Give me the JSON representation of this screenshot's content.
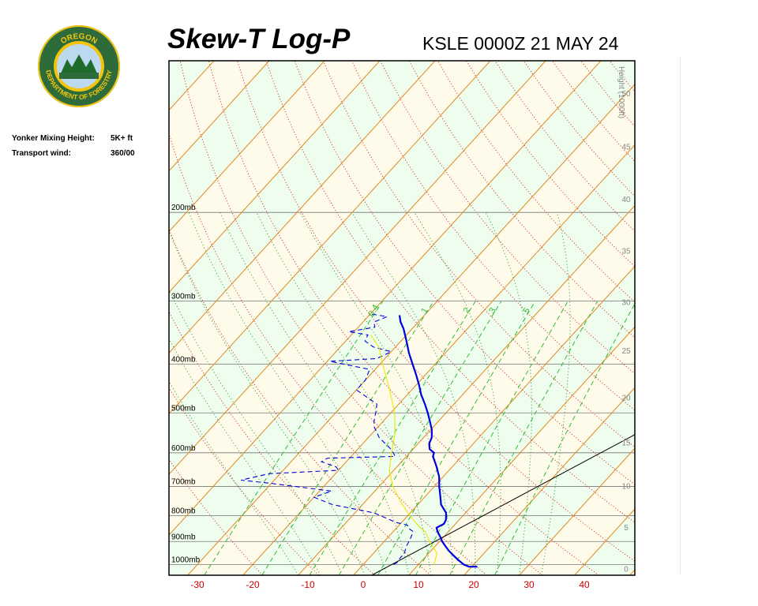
{
  "header": {
    "title": "Skew-T Log-P",
    "station_line": "KSLE 0000Z 21 MAY 24"
  },
  "logo": {
    "name": "oregon-department-of-forestry-seal",
    "top_text": "OREGON",
    "bottom_text": "DEPARTMENT OF FORESTRY",
    "colors": {
      "ring": "#2e6b3a",
      "gold": "#f2c40f",
      "tree": "#1e6b2d",
      "sky": "#bcd9ef"
    }
  },
  "info": {
    "mixing_height_label": "Yonker Mixing Height:",
    "mixing_height_value": "5K+ ft",
    "transport_wind_label": "Transport wind:",
    "transport_wind_value": "360/00"
  },
  "chart_data": {
    "type": "line",
    "xlabel": "",
    "ylabel": "",
    "xlim": [
      -32,
      49
    ],
    "ylim_pressure_mb": [
      1050,
      100
    ],
    "x_ticks": [
      -30,
      -20,
      -10,
      0,
      10,
      20,
      30,
      40
    ],
    "pressure_levels": [
      {
        "p": 1000,
        "label": "1000mb"
      },
      {
        "p": 900,
        "label": "900mb"
      },
      {
        "p": 800,
        "label": "800mb"
      },
      {
        "p": 700,
        "label": "700mb"
      },
      {
        "p": 600,
        "label": "600mb"
      },
      {
        "p": 500,
        "label": "500mb"
      },
      {
        "p": 400,
        "label": "400mb"
      },
      {
        "p": 300,
        "label": "300mb"
      },
      {
        "p": 200,
        "label": "200mb"
      }
    ],
    "height_axis": {
      "label": "Height (1000ft)",
      "ticks": [
        {
          "label": "0",
          "p": 1018
        },
        {
          "label": "5",
          "p": 843
        },
        {
          "label": "10",
          "p": 697
        },
        {
          "label": "15",
          "p": 572
        },
        {
          "label": "20",
          "p": 466
        },
        {
          "label": "25",
          "p": 376
        },
        {
          "label": "30",
          "p": 301
        },
        {
          "label": "35",
          "p": 238
        },
        {
          "label": "40",
          "p": 188
        },
        {
          "label": "45",
          "p": 148
        },
        {
          "label": "50",
          "p": 116
        }
      ]
    },
    "mixing_ratio_labels": [
      "0.4",
      "1",
      "2",
      "3",
      "5"
    ],
    "mixing_ratio_values": [
      0.4,
      1,
      2,
      3,
      5,
      8,
      12,
      20
    ],
    "dry_adiabats_theta_c": [
      -20,
      -10,
      0,
      10,
      20,
      30,
      40,
      50,
      60,
      70,
      80,
      90,
      100,
      110,
      120,
      130,
      140,
      150,
      160,
      170,
      180,
      190,
      200
    ],
    "moist_adiabats_start_c": [
      -10,
      -6,
      -2,
      2,
      6,
      10,
      14,
      18,
      22,
      26,
      30,
      34
    ],
    "isotherm_step_c": 10,
    "series": [
      {
        "role": "temperature",
        "color": "#0000dd",
        "style": "solid",
        "points": [
          {
            "p": 1010,
            "t": 21.0
          },
          {
            "p": 1010,
            "t": 19.5
          },
          {
            "p": 1000,
            "t": 18.2
          },
          {
            "p": 980,
            "t": 16.5
          },
          {
            "p": 960,
            "t": 14.9
          },
          {
            "p": 940,
            "t": 13.3
          },
          {
            "p": 920,
            "t": 11.9
          },
          {
            "p": 900,
            "t": 10.5
          },
          {
            "p": 880,
            "t": 9.3
          },
          {
            "p": 860,
            "t": 8.0
          },
          {
            "p": 845,
            "t": 7.2
          },
          {
            "p": 830,
            "t": 7.9
          },
          {
            "p": 815,
            "t": 7.6
          },
          {
            "p": 790,
            "t": 6.5
          },
          {
            "p": 760,
            "t": 4.2
          },
          {
            "p": 730,
            "t": 2.6
          },
          {
            "p": 700,
            "t": 0.9
          },
          {
            "p": 670,
            "t": -0.7
          },
          {
            "p": 640,
            "t": -2.8
          },
          {
            "p": 610,
            "t": -5.2
          },
          {
            "p": 600,
            "t": -5.6
          },
          {
            "p": 590,
            "t": -7.0
          },
          {
            "p": 575,
            "t": -8.0
          },
          {
            "p": 560,
            "t": -8.5
          },
          {
            "p": 540,
            "t": -9.8
          },
          {
            "p": 520,
            "t": -11.5
          },
          {
            "p": 500,
            "t": -13.3
          },
          {
            "p": 480,
            "t": -15.3
          },
          {
            "p": 460,
            "t": -17.5
          },
          {
            "p": 440,
            "t": -19.5
          },
          {
            "p": 420,
            "t": -21.7
          },
          {
            "p": 400,
            "t": -24.1
          },
          {
            "p": 380,
            "t": -26.6
          },
          {
            "p": 360,
            "t": -29.0
          },
          {
            "p": 340,
            "t": -31.6
          },
          {
            "p": 330,
            "t": -33.2
          },
          {
            "p": 320,
            "t": -34.5
          }
        ]
      },
      {
        "role": "dewpoint",
        "color": "#0000dd",
        "style": "dashed",
        "points": [
          {
            "p": 1000,
            "t": 5.5
          },
          {
            "p": 990,
            "t": 5.8
          },
          {
            "p": 970,
            "t": 5.6
          },
          {
            "p": 950,
            "t": 5.6
          },
          {
            "p": 920,
            "t": 4.8
          },
          {
            "p": 890,
            "t": 4.3
          },
          {
            "p": 860,
            "t": 3.6
          },
          {
            "p": 850,
            "t": 2.5
          },
          {
            "p": 845,
            "t": 2.0
          },
          {
            "p": 835,
            "t": 1.5
          },
          {
            "p": 825,
            "t": -1.0
          },
          {
            "p": 790,
            "t": -6.5
          },
          {
            "p": 760,
            "t": -15.5
          },
          {
            "p": 735,
            "t": -20.0
          },
          {
            "p": 715,
            "t": -17.8
          },
          {
            "p": 690,
            "t": -30.0
          },
          {
            "p": 680,
            "t": -36.0
          },
          {
            "p": 660,
            "t": -32.0
          },
          {
            "p": 650,
            "t": -20.0
          },
          {
            "p": 640,
            "t": -21.0
          },
          {
            "p": 625,
            "t": -24.5
          },
          {
            "p": 615,
            "t": -24.0
          },
          {
            "p": 610,
            "t": -12.0
          },
          {
            "p": 590,
            "t": -14.0
          },
          {
            "p": 560,
            "t": -18.0
          },
          {
            "p": 530,
            "t": -21.0
          },
          {
            "p": 510,
            "t": -22.2
          },
          {
            "p": 495,
            "t": -23.0
          },
          {
            "p": 480,
            "t": -24.0
          },
          {
            "p": 465,
            "t": -27.0
          },
          {
            "p": 450,
            "t": -30.0
          },
          {
            "p": 430,
            "t": -30.0
          },
          {
            "p": 410,
            "t": -31.0
          },
          {
            "p": 395,
            "t": -39.5
          },
          {
            "p": 390,
            "t": -31.5
          },
          {
            "p": 378,
            "t": -30.0
          },
          {
            "p": 370,
            "t": -34.0
          },
          {
            "p": 360,
            "t": -36.5
          },
          {
            "p": 350,
            "t": -37.0
          },
          {
            "p": 345,
            "t": -41.0
          },
          {
            "p": 338,
            "t": -37.0
          },
          {
            "p": 330,
            "t": -38.0
          },
          {
            "p": 322,
            "t": -36.5
          },
          {
            "p": 318,
            "t": -40.0
          }
        ]
      },
      {
        "role": "parcel",
        "color": "#e8e800",
        "style": "solid",
        "points": [
          {
            "p": 1000,
            "t": 12.8
          },
          {
            "p": 950,
            "t": 11.5
          },
          {
            "p": 900,
            "t": 8.2
          },
          {
            "p": 860,
            "t": 5.8
          },
          {
            "p": 840,
            "t": 3.8
          },
          {
            "p": 800,
            "t": 0.4
          },
          {
            "p": 750,
            "t": -3.6
          },
          {
            "p": 700,
            "t": -7.5
          },
          {
            "p": 650,
            "t": -10.8
          },
          {
            "p": 600,
            "t": -13.3
          },
          {
            "p": 550,
            "t": -15.8
          },
          {
            "p": 500,
            "t": -19.3
          },
          {
            "p": 450,
            "t": -24.0
          },
          {
            "p": 400,
            "t": -29.5
          },
          {
            "p": 370,
            "t": -33.0
          },
          {
            "p": 350,
            "t": -36.5
          }
        ]
      }
    ],
    "sfc_line": {
      "t0": 3.3,
      "p0": 1050,
      "t1": 40.0,
      "p1": 400
    },
    "grid": true,
    "colors": {
      "isobar": "#777777",
      "isotherm": "#e08822",
      "dry_adiabat": "#d62020",
      "moist_adiabat": "#229922",
      "mixing_ratio": "#33bb33",
      "band_light": "#fffbea",
      "band_green": "#eefdee",
      "x_tick": "#cc0000",
      "height_tick": "#888888"
    }
  }
}
